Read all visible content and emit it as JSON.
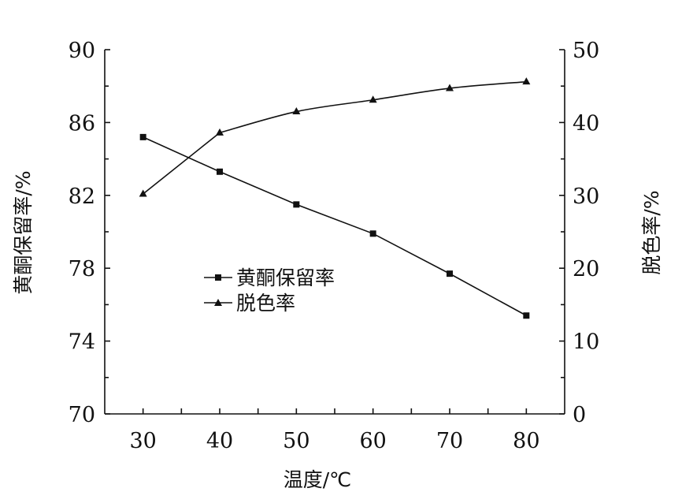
{
  "chart_data": {
    "type": "line",
    "x": [
      30,
      40,
      50,
      60,
      70,
      80
    ],
    "xlabel": "温度/℃",
    "xticks": [
      "30",
      "40",
      "50",
      "60",
      "70",
      "80"
    ],
    "xlim": [
      25,
      85
    ],
    "grid": false,
    "legend_position": "center-left",
    "left_axis": {
      "label": "黄酮保留率/%",
      "ylim": [
        70,
        90
      ],
      "ticks": [
        "70",
        "74",
        "78",
        "82",
        "86",
        "90"
      ]
    },
    "right_axis": {
      "label": "脱色率/%",
      "ylim": [
        0,
        50
      ],
      "ticks": [
        "0",
        "10",
        "20",
        "30",
        "40",
        "50"
      ]
    },
    "series": [
      {
        "name": "黄酮保留率",
        "axis": "left",
        "marker": "square",
        "values": [
          85.2,
          83.3,
          81.5,
          79.9,
          77.7,
          75.4
        ]
      },
      {
        "name": "脱色率",
        "axis": "right",
        "marker": "triangle",
        "values": [
          30.2,
          38.6,
          41.5,
          43.1,
          44.7,
          45.6
        ]
      }
    ]
  }
}
